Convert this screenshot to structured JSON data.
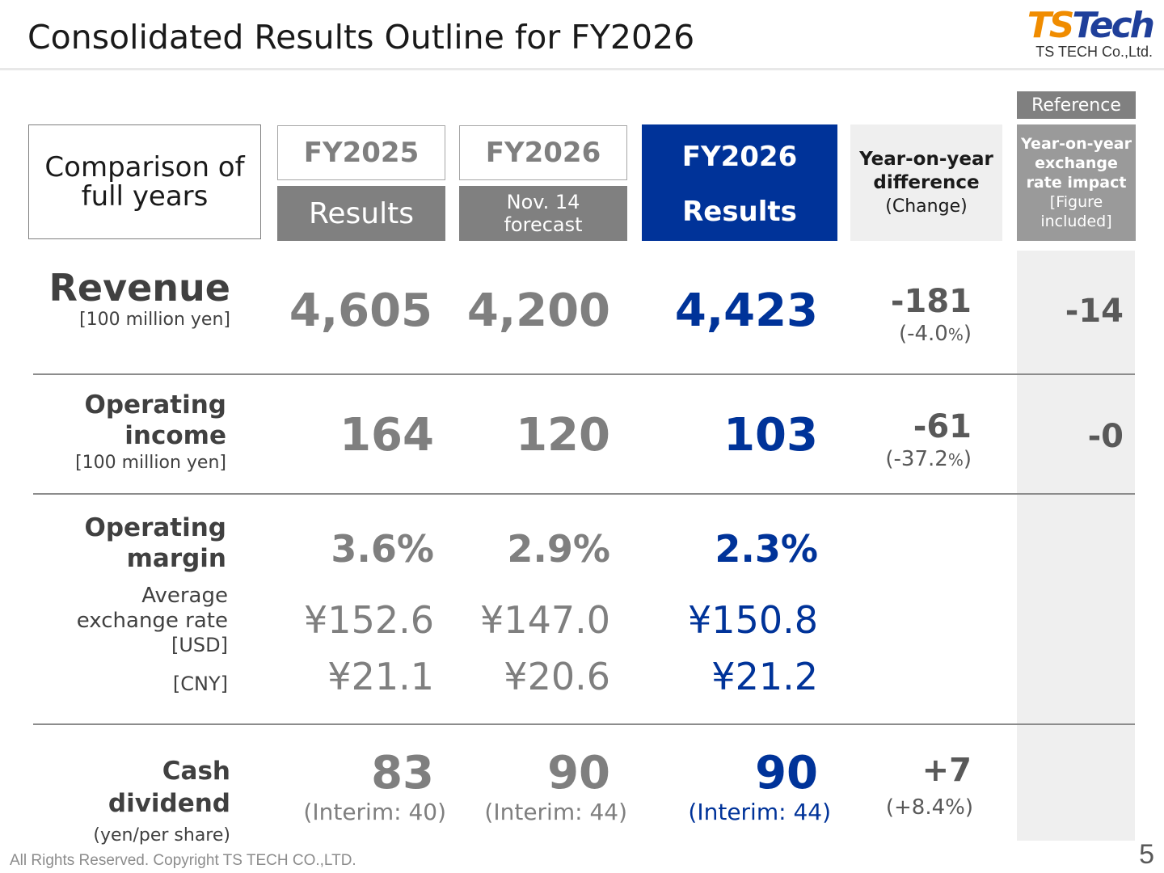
{
  "header": {
    "title": "Consolidated Results Outline for FY2026"
  },
  "logo": {
    "mark_ts": "TS",
    "mark_tech": "Tech",
    "company": "TS TECH Co.,Ltd."
  },
  "columns": {
    "comparison_label": "Comparison of\nfull years",
    "fy2025": {
      "year": "FY2025",
      "sub": "Results"
    },
    "fy2026_forecast": {
      "year": "FY2026",
      "sub": "Nov. 14\nforecast"
    },
    "fy2026_results": {
      "year": "FY2026",
      "sub": "Results"
    },
    "yoy": {
      "line1": "Year-on-year",
      "line2": "difference",
      "line3": "(Change)"
    },
    "reference": {
      "tag": "Reference",
      "line1": "Year-on-year",
      "line2": "exchange",
      "line3": "rate impact",
      "line4": "[Figure",
      "line5": "included]"
    }
  },
  "rows": {
    "revenue": {
      "label": "Revenue",
      "unit": "[100 million yen]",
      "fy2025": "4,605",
      "forecast": "4,200",
      "results": "4,423",
      "yoy": "-181",
      "yoy_pct": "(-4.0",
      "yoy_pct_sign": "%",
      "yoy_pct_close": ")",
      "ref": "-14"
    },
    "operating_income": {
      "label1": "Operating",
      "label2": "income",
      "unit": "[100 million yen]",
      "fy2025": "164",
      "forecast": "120",
      "results": "103",
      "yoy": "-61",
      "yoy_pct": "(-37.2",
      "yoy_pct_sign": "%",
      "yoy_pct_close": ")",
      "ref": "-0"
    },
    "operating_margin": {
      "label1": "Operating",
      "label2": "margin",
      "fy2025": "3.6%",
      "forecast": "2.9%",
      "results": "2.3%"
    },
    "exchange_rate": {
      "label1": "Average",
      "label2": "exchange rate",
      "usd_label": "[USD]",
      "cny_label": "[CNY]",
      "usd": {
        "fy2025": "¥152.6",
        "forecast": "¥147.0",
        "results": "¥150.8"
      },
      "cny": {
        "fy2025": "¥21.1",
        "forecast": "¥20.6",
        "results": "¥21.2"
      }
    },
    "cash_dividend": {
      "label": "Cash dividend",
      "unit": "(yen/per share)",
      "fy2025": "83",
      "forecast": "90",
      "results": "90",
      "fy2025_interim": "(Interim: 40)",
      "forecast_interim": "(Interim: 44)",
      "results_interim": "(Interim: 44)",
      "yoy": "+7",
      "yoy_pct": "(+8.4%)"
    }
  },
  "footer": {
    "copyright": "All Rights Reserved. Copyright TS TECH CO.,LTD.",
    "page": "5"
  },
  "colors": {
    "accent": "#003399",
    "gray_header": "#808080",
    "reference_bg": "#efefef",
    "logo_orange": "#f08c00"
  }
}
